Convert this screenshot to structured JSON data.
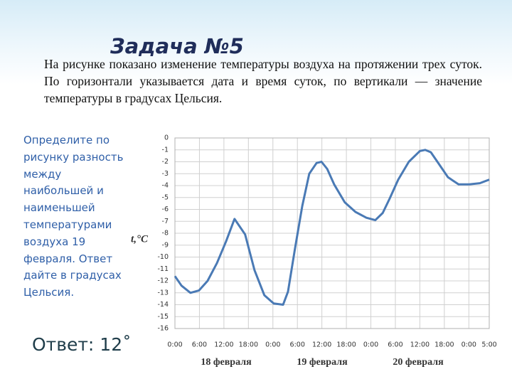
{
  "slide": {
    "title": "Задача №5",
    "problem": "На рисунке показано изменение температуры воздуха на протяжении трех суток. По горизонтали указывается дата и время суток, по вертикали — значение температуры в градусах Цельсия.",
    "question": "Определите по рисунку разность между наибольшей и наименьшей температурами воздуха 19 февраля. Ответ дайте в градусах Цельсия.",
    "answer": "Ответ: 12˚"
  },
  "chart_data": {
    "type": "line",
    "y_label": "t,°C",
    "date_labels": [
      "18 февраля",
      "19 февраля",
      "20 февраля"
    ],
    "color": "#4a7ab5",
    "grid": true,
    "x": [
      0,
      1.6,
      3.8,
      5.9,
      8,
      10.3,
      12.5,
      14.6,
      17.2,
      19.5,
      21.9,
      24.2,
      26.5,
      27.7,
      29.4,
      31.2,
      32.9,
      34.7,
      35.9,
      37.3,
      39,
      41.6,
      44.2,
      46.9,
      49.1,
      50.9,
      52.6,
      54.7,
      57.3,
      60,
      61.3,
      62.7,
      64.3,
      66.9,
      69.5,
      72.1,
      74.7,
      77
    ],
    "values": [
      -11.6,
      -12.4,
      -13,
      -12.8,
      -12,
      -10.5,
      -8.7,
      -6.8,
      -8.1,
      -11.1,
      -13.2,
      -13.9,
      -14,
      -12.9,
      -9.3,
      -5.7,
      -3,
      -2.1,
      -2,
      -2.6,
      -3.9,
      -5.4,
      -6.2,
      -6.7,
      -6.9,
      -6.3,
      -5.1,
      -3.5,
      -2,
      -1.1,
      -1,
      -1.2,
      -2,
      -3.3,
      -3.9,
      -3.9,
      -3.8,
      -3.5
    ],
    "xlim": [
      0,
      77
    ],
    "xticks": [
      {
        "value": 0,
        "label": "0:00"
      },
      {
        "value": 6,
        "label": "6:00"
      },
      {
        "value": 12,
        "label": "12:00"
      },
      {
        "value": 18,
        "label": "18:00"
      },
      {
        "value": 24,
        "label": "0:00"
      },
      {
        "value": 30,
        "label": "6:00"
      },
      {
        "value": 36,
        "label": "12:00"
      },
      {
        "value": 42,
        "label": "18:00"
      },
      {
        "value": 48,
        "label": "0:00"
      },
      {
        "value": 54,
        "label": "6:00"
      },
      {
        "value": 60,
        "label": "12:00"
      },
      {
        "value": 66,
        "label": "18:00"
      },
      {
        "value": 72,
        "label": "0:00"
      },
      {
        "value": 77,
        "label": "5:00"
      }
    ],
    "ylim": [
      -16,
      0
    ],
    "yticks": [
      0,
      -1,
      -2,
      -3,
      -4,
      -5,
      -6,
      -7,
      -8,
      -9,
      -10,
      -11,
      -12,
      -13,
      -14,
      -15,
      -16
    ]
  }
}
